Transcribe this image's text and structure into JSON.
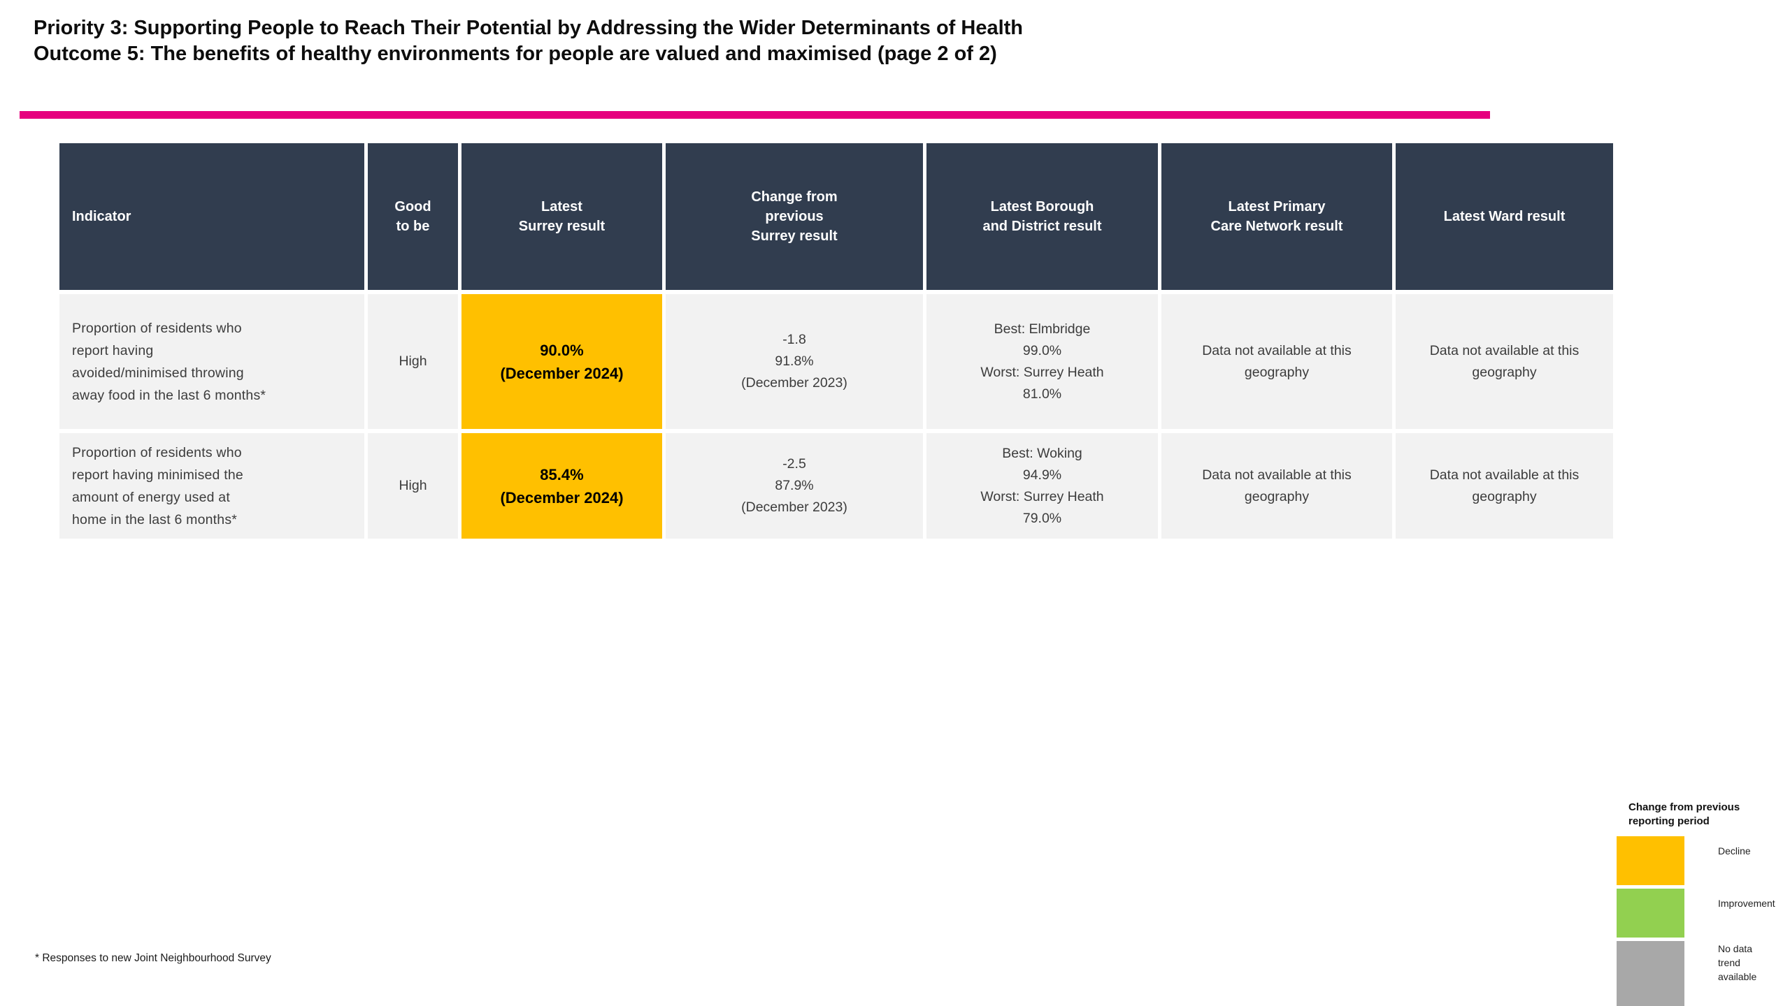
{
  "title": {
    "line1": "Priority 3: Supporting People to Reach Their Potential by Addressing the Wider Determinants of Health",
    "line2": "Outcome 5: The benefits of healthy environments for people are valued and maximised (page 2 of 2)"
  },
  "colors": {
    "accent_pink": "#E6007E",
    "header_bg": "#313D4F",
    "row_bg": "#F2F2F2",
    "decline_orange": "#FFC000",
    "improvement_green": "#92D050",
    "no_data_gray": "#A8A8A8"
  },
  "table": {
    "columns": [
      "Indicator",
      "Good to be",
      "Latest Surrey result",
      "Change from previous Surrey result",
      "Latest Borough and District result",
      "Latest Primary Care Network result",
      "Latest Ward result"
    ],
    "rows": [
      {
        "indicator": "Proportion of residents who report having avoided/minimised throwing away food in the last 6 months*",
        "good_to_be": "High",
        "surrey": {
          "value": "90.0%",
          "period": "(December 2024)"
        },
        "change": {
          "delta": "-1.8",
          "previous": "91.8%",
          "period": "(December 2023)"
        },
        "borough": {
          "best_label": "Best: Elmbridge",
          "best_value": "99.0%",
          "worst_label": "Worst: Surrey Heath",
          "worst_value": "81.0%"
        },
        "pcn": "Data not available at this geography",
        "ward": "Data not available at this geography"
      },
      {
        "indicator": "Proportion of residents who report having minimised the amount of energy used at home in the last 6 months*",
        "good_to_be": "High",
        "surrey": {
          "value": "85.4%",
          "period": "(December 2024)"
        },
        "change": {
          "delta": "-2.5",
          "previous": "87.9%",
          "period": "(December 2023)"
        },
        "borough": {
          "best_label": "Best: Woking",
          "best_value": "94.9%",
          "worst_label": "Worst: Surrey Heath",
          "worst_value": "79.0%"
        },
        "pcn": "Data not available at this geography",
        "ward": "Data not available at this geography"
      }
    ]
  },
  "footnote": "* Responses to new Joint Neighbourhood Survey",
  "legend": {
    "title": "Change from previous reporting period",
    "items": [
      {
        "label": "Decline",
        "color": "#FFC000"
      },
      {
        "label": "Improvement",
        "color": "#92D050"
      },
      {
        "label": "No data trend available",
        "color": "#A8A8A8"
      }
    ]
  }
}
